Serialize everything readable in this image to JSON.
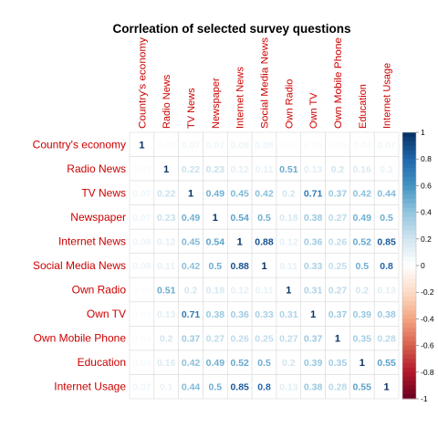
{
  "chart_data": {
    "type": "heatmap",
    "title": "Corrleation of selected survey questions",
    "labels": [
      "Country's economy",
      "Radio News",
      "TV News",
      "Newspaper",
      "Internet News",
      "Social Media News",
      "Own Radio",
      "Own TV",
      "Own Mobile Phone",
      "Education",
      "Internet Usage"
    ],
    "column_labels_shown": [
      "Country's economy",
      "Radio News",
      "TV News",
      "Newspaper",
      "Internet News",
      "Social Media News",
      "Own Radio",
      "Own TV",
      "Own Mobile Phone",
      "Education",
      "Internet Usage"
    ],
    "matrix": [
      [
        1,
        0.03,
        0.07,
        0.07,
        0.08,
        0.08,
        0.02,
        0.03,
        0.03,
        0.04,
        0.07
      ],
      [
        0.03,
        1,
        0.22,
        0.23,
        0.12,
        0.11,
        0.51,
        0.13,
        0.2,
        0.16,
        0.1
      ],
      [
        0.07,
        0.22,
        1,
        0.49,
        0.45,
        0.42,
        0.2,
        0.71,
        0.37,
        0.42,
        0.44
      ],
      [
        0.07,
        0.23,
        0.49,
        1,
        0.54,
        0.5,
        0.18,
        0.38,
        0.27,
        0.49,
        0.5
      ],
      [
        0.08,
        0.12,
        0.45,
        0.54,
        1,
        0.88,
        0.12,
        0.36,
        0.26,
        0.52,
        0.85
      ],
      [
        0.08,
        0.11,
        0.42,
        0.5,
        0.88,
        1,
        0.11,
        0.33,
        0.25,
        0.5,
        0.8
      ],
      [
        0.02,
        0.51,
        0.2,
        0.18,
        0.12,
        0.11,
        1,
        0.31,
        0.27,
        0.2,
        0.13
      ],
      [
        0.03,
        0.13,
        0.71,
        0.38,
        0.36,
        0.33,
        0.31,
        1,
        0.37,
        0.39,
        0.38
      ],
      [
        0.03,
        0.2,
        0.37,
        0.27,
        0.26,
        0.25,
        0.27,
        0.37,
        1,
        0.35,
        0.28
      ],
      [
        0.04,
        0.16,
        0.42,
        0.49,
        0.52,
        0.5,
        0.2,
        0.39,
        0.35,
        1,
        0.55
      ],
      [
        0.07,
        0.1,
        0.44,
        0.5,
        0.85,
        0.8,
        0.13,
        0.38,
        0.28,
        0.55,
        1
      ]
    ],
    "value_range": [
      -1,
      1
    ],
    "colorbar_ticks": [
      "1",
      "0.8",
      "0.6",
      "0.4",
      "0.2",
      "0",
      "-0.2",
      "-0.4",
      "-0.6",
      "-0.8",
      "-1"
    ],
    "colorbar_tick_values": [
      1,
      0.8,
      0.6,
      0.4,
      0.2,
      0,
      -0.2,
      -0.4,
      -0.6,
      -0.8,
      -1
    ],
    "colorscale": {
      "negative_end": "#67001F",
      "mid": "#FFFFFF",
      "positive_end": "#053061",
      "stops": [
        "#67001F",
        "#B2182B",
        "#D6604D",
        "#F4A582",
        "#FDDBC7",
        "#FFFFFF",
        "#D1E5F0",
        "#92C5DE",
        "#4393C3",
        "#2166AC",
        "#053061"
      ]
    },
    "label_color": "#CC0000",
    "grid": true,
    "legend_position": "right"
  }
}
